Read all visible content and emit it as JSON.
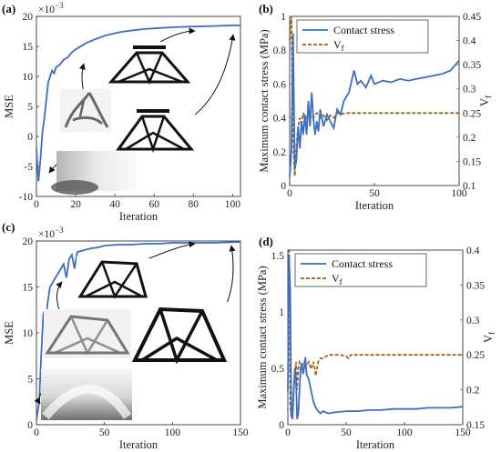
{
  "panels": {
    "a": {
      "label": "(a)"
    },
    "b": {
      "label": "(b)"
    },
    "c": {
      "label": "(c)"
    },
    "d": {
      "label": "(d)"
    }
  },
  "chart_data": [
    {
      "id": "a",
      "type": "line",
      "title": "",
      "xlabel": "Iteration",
      "ylabel": "MSE",
      "y_multiplier_label": "×10",
      "y_multiplier_exp": "−3",
      "xlim": [
        0,
        104
      ],
      "ylim": [
        -10,
        20
      ],
      "xticks": [
        0,
        20,
        40,
        60,
        80,
        100
      ],
      "yticks": [
        -10,
        -5,
        0,
        5,
        10,
        15,
        20
      ],
      "grid": false,
      "colors": {
        "line": "#3a6fc4",
        "arrow": "#111111"
      },
      "insets": [
        "gradient-design-inset",
        "early-structure-inset",
        "mid-structure-inset",
        "final-structure-inset-1",
        "final-structure-inset-2"
      ],
      "series": [
        {
          "x": [
            0,
            1,
            2,
            3,
            4,
            5,
            6,
            7,
            8,
            9,
            10,
            12,
            14,
            16,
            18,
            20,
            25,
            30,
            35,
            40,
            45,
            50,
            55,
            60,
            70,
            80,
            90,
            100,
            104
          ],
          "y": [
            -2,
            -7.5,
            -4,
            0.5,
            3,
            6,
            9,
            10,
            11,
            10.5,
            11.5,
            12,
            12.8,
            13.2,
            14,
            14.5,
            15.5,
            16.2,
            16.8,
            17.2,
            17.5,
            17.7,
            17.9,
            18,
            18.2,
            18.3,
            18.4,
            18.5,
            18.5
          ]
        }
      ]
    },
    {
      "id": "b",
      "type": "line",
      "title": "",
      "xlabel": "Iteration",
      "ylabel": "Maximum contact stress (MPa)",
      "ylabel_right": "V",
      "ylabel_right_sub": "f",
      "xlim": [
        0,
        100
      ],
      "ylim": [
        0,
        1
      ],
      "ylim_right": [
        0.1,
        0.45
      ],
      "xticks": [
        0,
        50,
        100
      ],
      "yticks": [
        0,
        0.2,
        0.4,
        0.6,
        0.8,
        1
      ],
      "yticks_right": [
        0.1,
        0.15,
        0.2,
        0.25,
        0.3,
        0.35,
        0.4,
        0.45
      ],
      "legend_position": "top",
      "grid": false,
      "colors": {
        "stress": "#3a6fc4",
        "vf": "#a0601e"
      },
      "series": [
        {
          "name": "Contact stress",
          "axis": "left",
          "x": [
            0,
            1,
            2,
            3,
            4,
            5,
            6,
            7,
            8,
            9,
            10,
            11,
            12,
            13,
            14,
            15,
            16,
            17,
            18,
            20,
            22,
            24,
            26,
            28,
            30,
            32,
            35,
            38,
            40,
            42,
            45,
            48,
            50,
            55,
            60,
            65,
            70,
            75,
            80,
            85,
            90,
            95,
            100
          ],
          "y": [
            0.05,
            0.2,
            0.9,
            0.1,
            0.15,
            0.35,
            0.22,
            0.38,
            0.3,
            0.42,
            0.3,
            0.5,
            0.35,
            0.55,
            0.4,
            0.3,
            0.38,
            0.32,
            0.45,
            0.35,
            0.42,
            0.38,
            0.34,
            0.45,
            0.42,
            0.5,
            0.55,
            0.68,
            0.6,
            0.62,
            0.58,
            0.65,
            0.6,
            0.62,
            0.61,
            0.63,
            0.62,
            0.63,
            0.64,
            0.65,
            0.66,
            0.68,
            0.74
          ]
        },
        {
          "name": "V",
          "name_sub": "f",
          "axis": "right",
          "x": [
            0,
            1,
            2,
            3,
            4,
            5,
            6,
            7,
            8,
            9,
            10,
            11,
            12,
            13,
            14,
            15,
            16,
            18,
            20,
            22,
            24,
            26,
            28,
            30,
            35,
            40,
            50,
            60,
            70,
            80,
            90,
            100
          ],
          "y": [
            0.4,
            0.45,
            0.2,
            0.12,
            0.18,
            0.22,
            0.24,
            0.23,
            0.25,
            0.24,
            0.24,
            0.25,
            0.24,
            0.245,
            0.24,
            0.245,
            0.25,
            0.24,
            0.245,
            0.235,
            0.245,
            0.24,
            0.25,
            0.248,
            0.25,
            0.25,
            0.25,
            0.25,
            0.25,
            0.25,
            0.25,
            0.25
          ]
        }
      ]
    },
    {
      "id": "c",
      "type": "line",
      "title": "",
      "xlabel": "Iteration",
      "ylabel": "MSE",
      "y_multiplier_label": "×10",
      "y_multiplier_exp": "−3",
      "xlim": [
        0,
        150
      ],
      "ylim": [
        0,
        20
      ],
      "xticks": [
        0,
        50,
        100,
        150
      ],
      "yticks": [
        0,
        5,
        10,
        15,
        20
      ],
      "grid": false,
      "colors": {
        "line": "#3a6fc4",
        "arrow": "#111111"
      },
      "insets": [
        "gradient-design-inset",
        "early-structure-inset",
        "mid-structure-inset",
        "final-structure-inset"
      ],
      "series": [
        {
          "x": [
            0,
            1,
            2,
            3,
            4,
            5,
            6,
            7,
            8,
            9,
            10,
            12,
            14,
            16,
            18,
            20,
            22,
            24,
            26,
            28,
            30,
            35,
            40,
            45,
            50,
            60,
            70,
            80,
            90,
            100,
            110,
            120,
            130,
            140,
            150
          ],
          "y": [
            0.5,
            1.5,
            2.5,
            6,
            9,
            12,
            12.5,
            10,
            13,
            14,
            15,
            15.5,
            16,
            16.5,
            17,
            17.5,
            16,
            18,
            18.5,
            17,
            18.8,
            19,
            19.2,
            19.3,
            19.5,
            19.6,
            19.6,
            19.7,
            19.7,
            19.8,
            19.8,
            19.8,
            19.8,
            19.85,
            19.9
          ]
        }
      ]
    },
    {
      "id": "d",
      "type": "line",
      "title": "",
      "xlabel": "Iteration",
      "ylabel": "Maximum contact stress (MPa)",
      "ylabel_right": "V",
      "ylabel_right_sub": "f",
      "xlim": [
        0,
        150
      ],
      "ylim": [
        0,
        1.55
      ],
      "ylim_right": [
        0.15,
        0.4
      ],
      "xticks": [
        0,
        50,
        100,
        150
      ],
      "yticks": [
        0,
        0.5,
        1,
        1.5
      ],
      "yticks_right": [
        0.15,
        0.2,
        0.25,
        0.3,
        0.35,
        0.4
      ],
      "legend_position": "top",
      "grid": false,
      "colors": {
        "stress": "#3a6fc4",
        "vf": "#a0601e"
      },
      "series": [
        {
          "name": "Contact stress",
          "axis": "left",
          "x": [
            0,
            1,
            2,
            3,
            4,
            5,
            6,
            7,
            8,
            9,
            10,
            11,
            12,
            13,
            14,
            15,
            16,
            18,
            20,
            22,
            24,
            26,
            28,
            30,
            35,
            40,
            50,
            60,
            70,
            80,
            90,
            100,
            110,
            120,
            130,
            140,
            150
          ],
          "y": [
            0.3,
            1.5,
            1.2,
            0.1,
            0.05,
            0.3,
            0.5,
            0.4,
            0.05,
            0.1,
            0.3,
            0.5,
            0.55,
            0.45,
            0.5,
            0.6,
            0.45,
            0.4,
            0.3,
            0.2,
            0.15,
            0.12,
            0.1,
            0.12,
            0.1,
            0.11,
            0.12,
            0.12,
            0.13,
            0.13,
            0.14,
            0.14,
            0.14,
            0.15,
            0.15,
            0.15,
            0.16
          ]
        },
        {
          "name": "V",
          "name_sub": "f",
          "axis": "right",
          "x": [
            0,
            1,
            2,
            3,
            4,
            5,
            6,
            7,
            8,
            9,
            10,
            12,
            14,
            16,
            18,
            20,
            22,
            24,
            26,
            28,
            30,
            35,
            40,
            45,
            50,
            52,
            54,
            60,
            70,
            80,
            90,
            100,
            110,
            120,
            130,
            140,
            150
          ],
          "y": [
            0.4,
            0.4,
            0.18,
            0.16,
            0.17,
            0.2,
            0.22,
            0.24,
            0.2,
            0.23,
            0.24,
            0.235,
            0.24,
            0.235,
            0.24,
            0.23,
            0.24,
            0.22,
            0.24,
            0.245,
            0.245,
            0.25,
            0.25,
            0.25,
            0.248,
            0.245,
            0.25,
            0.25,
            0.25,
            0.25,
            0.25,
            0.25,
            0.25,
            0.25,
            0.25,
            0.25,
            0.25
          ]
        }
      ]
    }
  ]
}
